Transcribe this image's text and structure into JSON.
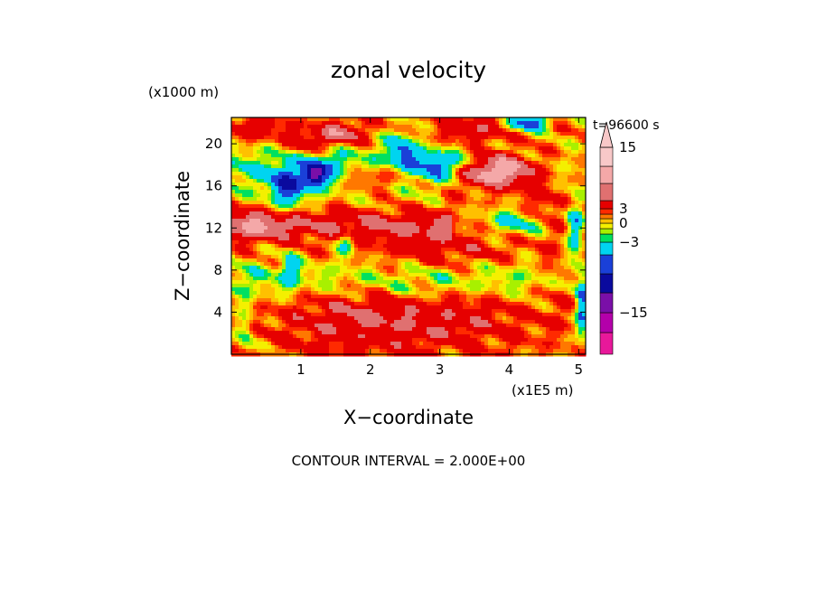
{
  "chart_data": {
    "type": "heatmap",
    "title": "zonal velocity",
    "time_label": "t=96600 s",
    "contour_interval_label": "CONTOUR INTERVAL = 2.000E+00",
    "xlabel": "X−coordinate",
    "ylabel": "Z−coordinate",
    "x_scale_label": "(x1E5 m)",
    "y_scale_label": "(x1000 m)",
    "xlim": [
      0,
      5.1
    ],
    "ylim": [
      0,
      22.5
    ],
    "x_ticks": [
      1,
      2,
      3,
      4,
      5
    ],
    "y_ticks": [
      4,
      8,
      12,
      16,
      20
    ],
    "colorbar": {
      "tick_values": [
        15,
        3,
        0,
        -3,
        -15
      ],
      "tick_labels": [
        "15",
        "3",
        "0",
        "−3",
        "−15"
      ],
      "levels": [
        -21,
        -18,
        -15,
        -12,
        -9,
        -6,
        -3,
        -2,
        -1,
        0,
        1,
        2,
        3,
        6,
        9,
        12,
        15,
        18,
        21
      ],
      "colors": [
        "#e8189a",
        "#b400aa",
        "#7a0fa8",
        "#0a0a9e",
        "#1a40d8",
        "#00d4f0",
        "#00e060",
        "#a8f000",
        "#f4f000",
        "#ffc000",
        "#ff7800",
        "#ff2a00",
        "#e60000",
        "#e07070",
        "#f4a8a8",
        "#f8c8c8"
      ],
      "extend": "both"
    },
    "features": [
      {
        "x": 0.35,
        "z": 12.2,
        "v": 4,
        "sx": 0.45,
        "sz": 1.3
      },
      {
        "x": 0.35,
        "z": 21.5,
        "v": 4,
        "sx": 0.4,
        "sz": 1.2
      },
      {
        "x": 0.8,
        "z": 15.8,
        "v": -8,
        "sx": 0.25,
        "sz": 2.0
      },
      {
        "x": 1.2,
        "z": 17.0,
        "v": -12,
        "sx": 0.15,
        "sz": 1.2
      },
      {
        "x": 1.15,
        "z": 20.2,
        "v": 4,
        "sx": 0.4,
        "sz": 1.3
      },
      {
        "x": 1.4,
        "z": 18.0,
        "v": -3,
        "sx": 0.25,
        "sz": 1.5
      },
      {
        "x": 1.6,
        "z": 21.0,
        "v": 6,
        "sx": 0.35,
        "sz": 1.0
      },
      {
        "x": 2.1,
        "z": 16.8,
        "v": 5,
        "sx": 0.55,
        "sz": 1.2
      },
      {
        "x": 2.45,
        "z": 19.5,
        "v": -6,
        "sx": 0.2,
        "sz": 1.8
      },
      {
        "x": 3.1,
        "z": 18.0,
        "v": -7,
        "sx": 0.45,
        "sz": 1.3
      },
      {
        "x": 3.5,
        "z": 21.5,
        "v": 4,
        "sx": 0.6,
        "sz": 1.3
      },
      {
        "x": 3.8,
        "z": 17.4,
        "v": 12,
        "sx": 0.55,
        "sz": 1.5
      },
      {
        "x": 4.1,
        "z": 12.5,
        "v": -6,
        "sx": 0.55,
        "sz": 1.3
      },
      {
        "x": 4.25,
        "z": 22.0,
        "v": -10,
        "sx": 0.3,
        "sz": 0.8
      },
      {
        "x": 3.1,
        "z": 10.0,
        "v": 3,
        "sx": 1.0,
        "sz": 2.0
      },
      {
        "x": 1.65,
        "z": 10.5,
        "v": -5,
        "sx": 0.12,
        "sz": 1.3
      },
      {
        "x": 0.85,
        "z": 8.2,
        "v": -5,
        "sx": 0.12,
        "sz": 1.5
      },
      {
        "x": 2.6,
        "z": 6.0,
        "v": -1,
        "sx": 0.5,
        "sz": 1.8
      },
      {
        "x": 1.8,
        "z": 3.5,
        "v": 4,
        "sx": 1.2,
        "sz": 3.5
      },
      {
        "x": 3.3,
        "z": 3.5,
        "v": 3,
        "sx": 1.2,
        "sz": 3.0
      },
      {
        "x": 0.2,
        "z": 2.0,
        "v": -4,
        "sx": 0.12,
        "sz": 2.5
      },
      {
        "x": 4.5,
        "z": 14.0,
        "v": 3,
        "sx": 0.3,
        "sz": 2.0
      },
      {
        "x": 4.7,
        "z": 7.0,
        "v": 3,
        "sx": 0.3,
        "sz": 3.0
      },
      {
        "x": 4.95,
        "z": 12.0,
        "v": -6,
        "sx": 0.12,
        "sz": 3.0
      },
      {
        "x": 5.05,
        "z": 4.0,
        "v": -8,
        "sx": 0.08,
        "sz": 2.5
      }
    ]
  }
}
